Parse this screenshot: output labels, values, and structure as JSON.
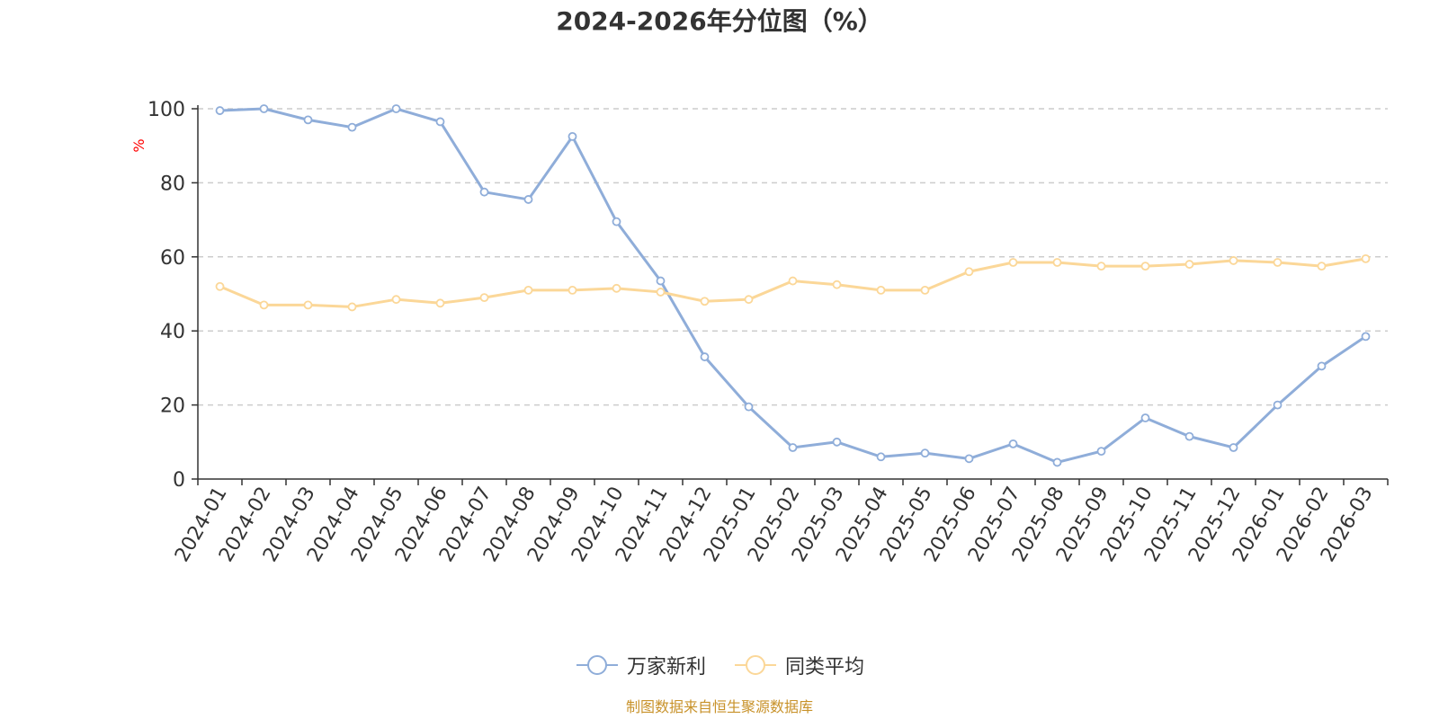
{
  "colors": {
    "series1": "#8fadd9",
    "series2": "#fbd798",
    "axis": "#333333",
    "grid": "#cccccc",
    "ylabel": "#ff0000",
    "source": "#c8922a"
  },
  "source_note": "制图数据来自恒生聚源数据库",
  "chart_data": {
    "type": "line",
    "title": "2024-2026年分位图（%）",
    "xlabel": "",
    "ylabel": "%",
    "ylim": [
      0,
      100
    ],
    "yticks": [
      0,
      20,
      40,
      60,
      80,
      100
    ],
    "grid": true,
    "legend_position": "bottom-center",
    "categories": [
      "2024-01",
      "2024-02",
      "2024-03",
      "2024-04",
      "2024-05",
      "2024-06",
      "2024-07",
      "2024-08",
      "2024-09",
      "2024-10",
      "2024-11",
      "2024-12",
      "2025-01",
      "2025-02",
      "2025-03",
      "2025-04",
      "2025-05",
      "2025-06",
      "2025-07",
      "2025-08",
      "2025-09",
      "2025-10",
      "2025-11",
      "2025-12",
      "2026-01",
      "2026-02",
      "2026-03"
    ],
    "series": [
      {
        "name": "万家新利",
        "values": [
          99.5,
          100,
          97,
          95,
          100,
          96.5,
          77.5,
          75.5,
          92.5,
          69.5,
          53.5,
          33,
          19.5,
          8.5,
          10,
          6,
          7,
          5.5,
          9.5,
          4.5,
          7.5,
          16.5,
          11.5,
          8.5,
          20,
          30.5,
          38.5
        ]
      },
      {
        "name": "同类平均",
        "values": [
          52,
          47,
          47,
          46.5,
          48.5,
          47.5,
          49,
          51,
          51,
          51.5,
          50.5,
          48,
          48.5,
          53.5,
          52.5,
          51,
          51,
          56,
          58.5,
          58.5,
          57.5,
          57.5,
          58,
          59,
          58.5,
          57.5,
          59.5
        ]
      }
    ]
  }
}
